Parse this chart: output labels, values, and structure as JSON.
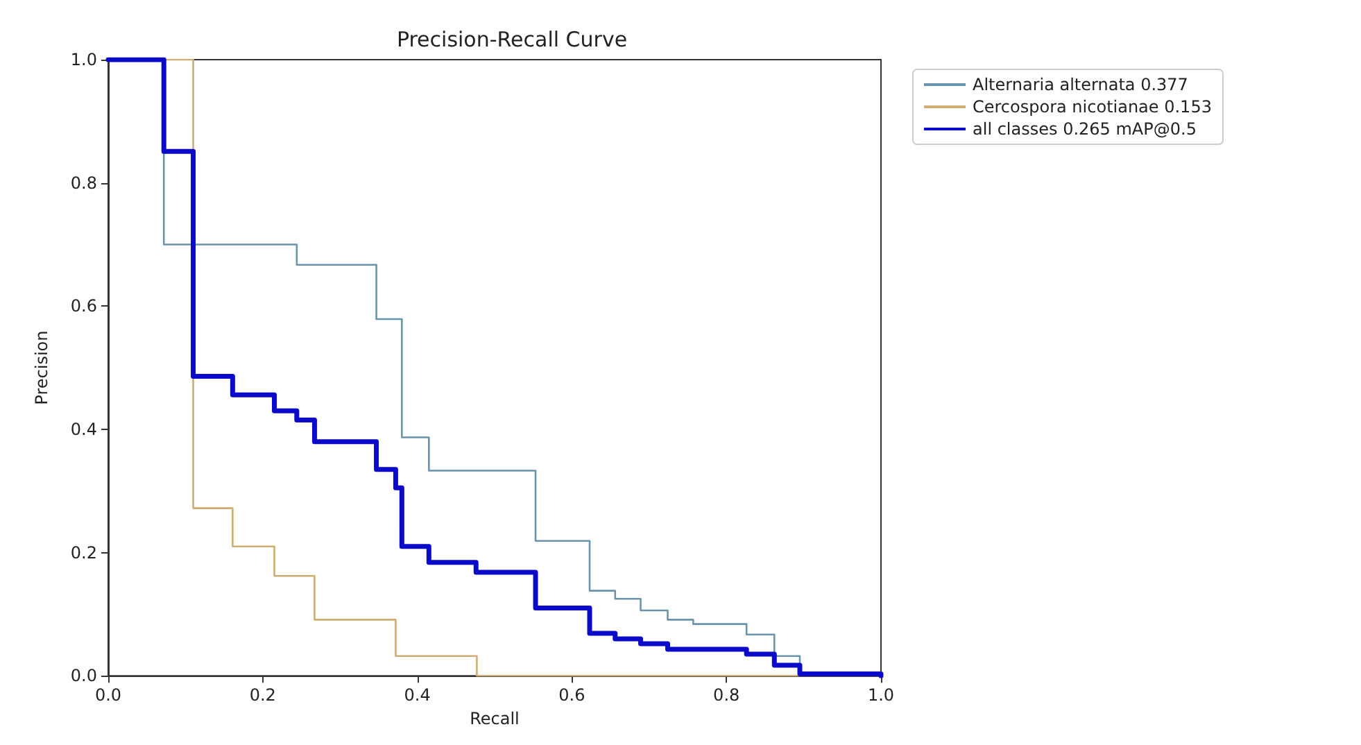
{
  "chart_data": {
    "type": "step",
    "title": "Precision-Recall Curve",
    "xlabel": "Recall",
    "ylabel": "Precision",
    "xlim": [
      0,
      1
    ],
    "ylim": [
      0,
      1
    ],
    "xticks": [
      {
        "value": 0,
        "label": "0.0"
      },
      0.2,
      0.4,
      0.6,
      0.8,
      {
        "value": 1,
        "label": "1.0"
      }
    ],
    "yticks": [
      {
        "value": 0,
        "label": "0.0"
      },
      0.2,
      0.4,
      0.6,
      0.8,
      {
        "value": 1,
        "label": "1.0"
      }
    ],
    "grid": false,
    "legend": "top right",
    "marker": "none",
    "line_style": "solid",
    "series": [
      {
        "name": "Alternaria alternata 0.377",
        "color": "#6a94ab",
        "x": [
          0,
          0.072,
          0.244,
          0.347,
          0.38,
          0.415,
          0.553,
          0.623,
          0.656,
          0.689,
          0.724,
          0.757,
          0.826,
          0.862,
          0.895,
          1.0
        ],
        "values": [
          1,
          0.7,
          0.667,
          0.579,
          0.387,
          0.333,
          0.219,
          0.138,
          0.125,
          0.106,
          0.091,
          0.084,
          0.067,
          0.032,
          0.005,
          0
        ]
      },
      {
        "name": "Cercospora nicotianae 0.153",
        "color": "#d0ad72",
        "x": [
          0,
          0.11,
          0.161,
          0.215,
          0.267,
          0.372,
          0.477,
          1.0
        ],
        "values": [
          1,
          0.272,
          0.21,
          0.162,
          0.091,
          0.032,
          0,
          0
        ]
      },
      {
        "name": "all classes 0.265 mAP@0.5",
        "color": "#0a0ac8",
        "x": [
          0,
          0.072,
          0.11,
          0.161,
          0.215,
          0.244,
          0.267,
          0.347,
          0.372,
          0.38,
          0.415,
          0.476,
          0.553,
          0.623,
          0.656,
          0.689,
          0.724,
          0.826,
          0.862,
          0.895,
          1.0
        ],
        "values": [
          1,
          0.851,
          0.486,
          0.456,
          0.43,
          0.415,
          0.38,
          0.335,
          0.305,
          0.21,
          0.184,
          0.168,
          0.11,
          0.069,
          0.06,
          0.052,
          0.043,
          0.035,
          0.017,
          0.003,
          0
        ]
      }
    ]
  }
}
